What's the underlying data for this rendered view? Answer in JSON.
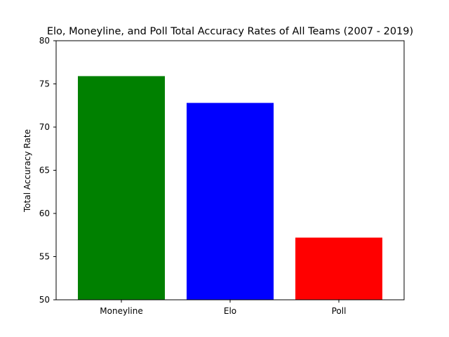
{
  "chart_data": {
    "type": "bar",
    "title": "Elo, Moneyline, and Poll Total Accuracy Rates of All Teams (2007 - 2019)",
    "xlabel": "",
    "ylabel": "Total Accuracy Rate",
    "categories": [
      "Moneyline",
      "Elo",
      "Poll"
    ],
    "values": [
      75.9,
      72.8,
      57.2
    ],
    "colors": [
      "#008000",
      "#0000ff",
      "#ff0000"
    ],
    "ylim": [
      50,
      80
    ],
    "yticks": [
      50,
      55,
      60,
      65,
      70,
      75,
      80
    ],
    "grid": false,
    "legend": "none"
  }
}
